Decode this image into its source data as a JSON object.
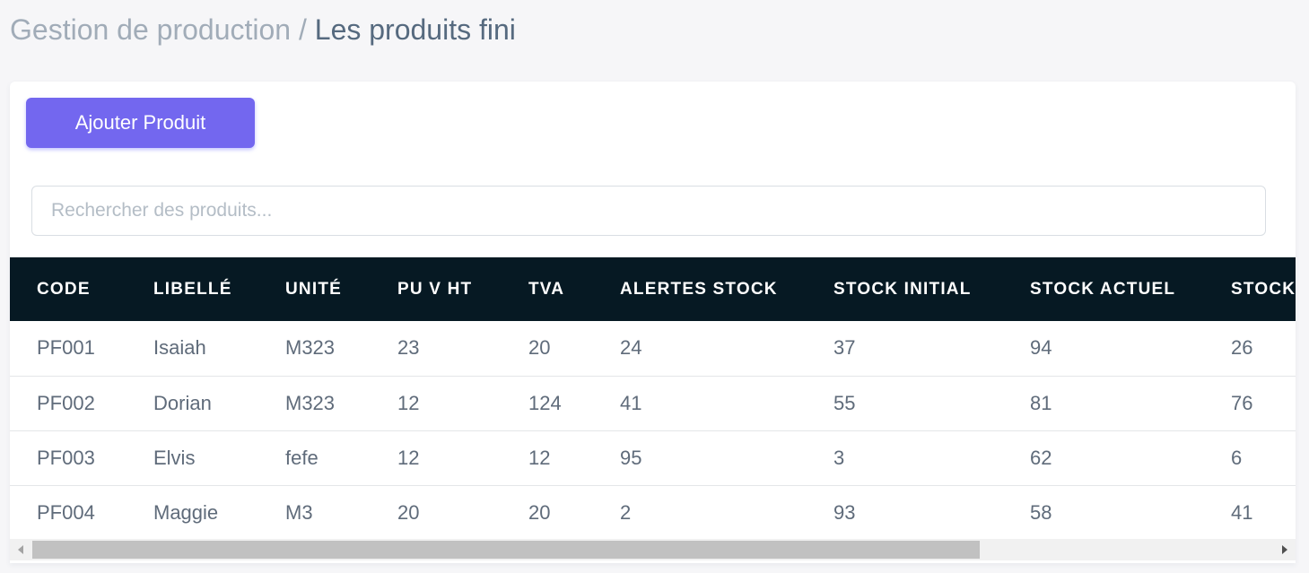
{
  "breadcrumb": {
    "parent": "Gestion de production /",
    "current": "Les produits fini"
  },
  "toolbar": {
    "add_label": "Ajouter Produit"
  },
  "search": {
    "placeholder": "Rechercher des produits...",
    "value": ""
  },
  "table": {
    "columns": [
      "CODE",
      "LIBELLÉ",
      "UNITÉ",
      "PU V HT",
      "TVA",
      "ALERTES STOCK",
      "STOCK INITIAL",
      "STOCK ACTUEL",
      "STOCK"
    ],
    "rows": [
      [
        "PF001",
        "Isaiah",
        "M323",
        "23",
        "20",
        "24",
        "37",
        "94",
        "26"
      ],
      [
        "PF002",
        "Dorian",
        "M323",
        "12",
        "124",
        "41",
        "55",
        "81",
        "76"
      ],
      [
        "PF003",
        "Elvis",
        "fefe",
        "12",
        "12",
        "95",
        "3",
        "62",
        "6"
      ],
      [
        "PF004",
        "Maggie",
        "M3",
        "20",
        "20",
        "2",
        "93",
        "58",
        "41"
      ]
    ]
  },
  "colors": {
    "accent": "#7367ef",
    "table_header": "#061923",
    "page_bg": "#f6f6f8"
  },
  "icons": {
    "scroll_left": "triangle-left-icon",
    "scroll_right": "triangle-right-icon"
  }
}
